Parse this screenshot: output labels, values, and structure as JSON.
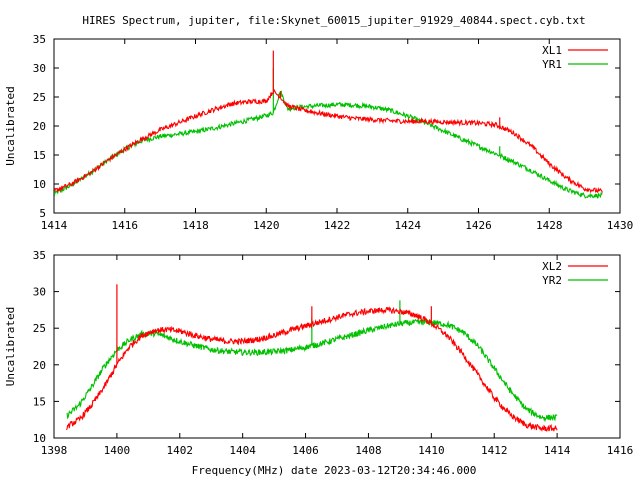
{
  "title": "HIRES Spectrum, jupiter, file:Skynet_60015_jupiter_91929_40844.spect.cyb.txt",
  "footer_label": "Frequency(MHz) date 2023-03-12T20:34:46.000",
  "colors": {
    "red": "#ff0000",
    "green": "#00c000",
    "axis": "#000000"
  },
  "chart_data": [
    {
      "type": "line",
      "ylabel": "Uncalibrated",
      "xlabel": "",
      "xlim": [
        1414,
        1430
      ],
      "ylim": [
        5,
        35
      ],
      "x_ticks": [
        1414,
        1416,
        1418,
        1420,
        1422,
        1424,
        1426,
        1428,
        1430
      ],
      "y_ticks": [
        5,
        10,
        15,
        20,
        25,
        30,
        35
      ],
      "legend_position": "top-right",
      "series": [
        {
          "name": "XL1",
          "color": "#ff0000",
          "x": [
            1414.0,
            1414.5,
            1415.0,
            1415.5,
            1416.0,
            1416.5,
            1417.0,
            1417.5,
            1418.0,
            1418.5,
            1419.0,
            1419.5,
            1420.0,
            1420.2,
            1420.4,
            1420.6,
            1421.0,
            1421.5,
            1422.0,
            1422.5,
            1423.0,
            1423.5,
            1424.0,
            1424.5,
            1425.0,
            1425.5,
            1426.0,
            1426.5,
            1427.0,
            1427.5,
            1428.0,
            1428.5,
            1429.0,
            1429.5
          ],
          "y": [
            8.8,
            10.0,
            11.8,
            14.0,
            16.0,
            17.8,
            19.3,
            20.5,
            21.7,
            22.8,
            23.8,
            24.2,
            24.3,
            26.0,
            25.0,
            23.5,
            22.8,
            22.2,
            21.7,
            21.3,
            21.1,
            20.9,
            20.8,
            20.8,
            20.7,
            20.6,
            20.5,
            20.2,
            18.8,
            16.5,
            13.5,
            11.0,
            9.2,
            8.7
          ]
        },
        {
          "name": "YR1",
          "color": "#00c000",
          "x": [
            1414.0,
            1414.5,
            1415.0,
            1415.5,
            1416.0,
            1416.5,
            1417.0,
            1417.5,
            1418.0,
            1418.5,
            1419.0,
            1419.5,
            1420.0,
            1420.2,
            1420.4,
            1420.6,
            1421.0,
            1421.5,
            1422.0,
            1422.5,
            1423.0,
            1423.5,
            1424.0,
            1424.5,
            1425.0,
            1425.5,
            1426.0,
            1426.5,
            1427.0,
            1427.5,
            1428.0,
            1428.5,
            1429.0,
            1429.5
          ],
          "y": [
            8.3,
            9.8,
            11.8,
            14.0,
            16.0,
            17.5,
            18.2,
            18.6,
            19.0,
            19.6,
            20.3,
            21.0,
            21.8,
            22.3,
            26.0,
            23.0,
            23.3,
            23.5,
            23.7,
            23.6,
            23.3,
            22.7,
            21.7,
            20.5,
            19.2,
            17.8,
            16.5,
            15.2,
            13.8,
            12.3,
            10.6,
            9.0,
            8.0,
            8.0
          ]
        }
      ],
      "spikes": [
        {
          "series": "XL1",
          "x": 1420.2,
          "y": 33.0
        },
        {
          "series": "XL1",
          "x": 1420.4,
          "y": 26.0
        },
        {
          "series": "YR1",
          "x": 1420.2,
          "y": 30.0
        },
        {
          "series": "XL1",
          "x": 1426.6,
          "y": 21.5
        },
        {
          "series": "YR1",
          "x": 1426.6,
          "y": 16.5
        }
      ]
    },
    {
      "type": "line",
      "ylabel": "Uncalibrated",
      "xlabel": "Frequency(MHz) date 2023-03-12T20:34:46.000",
      "xlim": [
        1398,
        1416
      ],
      "ylim": [
        10,
        35
      ],
      "x_ticks": [
        1398,
        1400,
        1402,
        1404,
        1406,
        1408,
        1410,
        1412,
        1414,
        1416
      ],
      "y_ticks": [
        10,
        15,
        20,
        25,
        30,
        35
      ],
      "legend_position": "top-right",
      "series": [
        {
          "name": "XL2",
          "color": "#ff0000",
          "x": [
            1398.4,
            1398.8,
            1399.2,
            1399.6,
            1400.0,
            1400.4,
            1400.8,
            1401.2,
            1401.6,
            1402.0,
            1402.5,
            1403.0,
            1403.5,
            1404.0,
            1404.5,
            1405.0,
            1405.5,
            1406.0,
            1406.5,
            1407.0,
            1407.5,
            1408.0,
            1408.5,
            1409.0,
            1409.5,
            1410.0,
            1410.5,
            1411.0,
            1411.5,
            1412.0,
            1412.5,
            1413.0,
            1413.5,
            1414.0
          ],
          "y": [
            11.5,
            12.5,
            14.5,
            17.0,
            20.0,
            22.5,
            24.0,
            24.7,
            24.8,
            24.6,
            24.0,
            23.5,
            23.2,
            23.2,
            23.5,
            24.0,
            24.7,
            25.3,
            25.9,
            26.5,
            27.0,
            27.3,
            27.5,
            27.3,
            26.8,
            25.7,
            24.0,
            21.5,
            18.5,
            15.5,
            13.2,
            11.8,
            11.3,
            11.3
          ]
        },
        {
          "name": "YR2",
          "color": "#00c000",
          "x": [
            1398.4,
            1398.8,
            1399.2,
            1399.6,
            1400.0,
            1400.4,
            1400.8,
            1401.2,
            1401.6,
            1402.0,
            1402.5,
            1403.0,
            1403.5,
            1404.0,
            1404.5,
            1405.0,
            1405.5,
            1406.0,
            1406.5,
            1407.0,
            1407.5,
            1408.0,
            1408.5,
            1409.0,
            1409.5,
            1410.0,
            1410.5,
            1411.0,
            1411.5,
            1412.0,
            1412.5,
            1413.0,
            1413.5,
            1414.0
          ],
          "y": [
            13.0,
            14.5,
            17.0,
            19.8,
            22.0,
            23.4,
            24.2,
            24.3,
            23.8,
            23.2,
            22.6,
            22.1,
            21.8,
            21.7,
            21.7,
            21.8,
            22.0,
            22.4,
            22.9,
            23.5,
            24.1,
            24.7,
            25.2,
            25.6,
            25.8,
            25.8,
            25.5,
            24.5,
            22.5,
            19.5,
            16.5,
            14.0,
            12.8,
            12.8
          ]
        }
      ],
      "spikes": [
        {
          "series": "XL2",
          "x": 1400.0,
          "y": 31.0
        },
        {
          "series": "XL2",
          "x": 1406.2,
          "y": 28.0
        },
        {
          "series": "YR2",
          "x": 1406.2,
          "y": 26.5
        },
        {
          "series": "YR2",
          "x": 1409.0,
          "y": 28.8
        },
        {
          "series": "XL2",
          "x": 1410.0,
          "y": 28.0
        }
      ]
    }
  ]
}
